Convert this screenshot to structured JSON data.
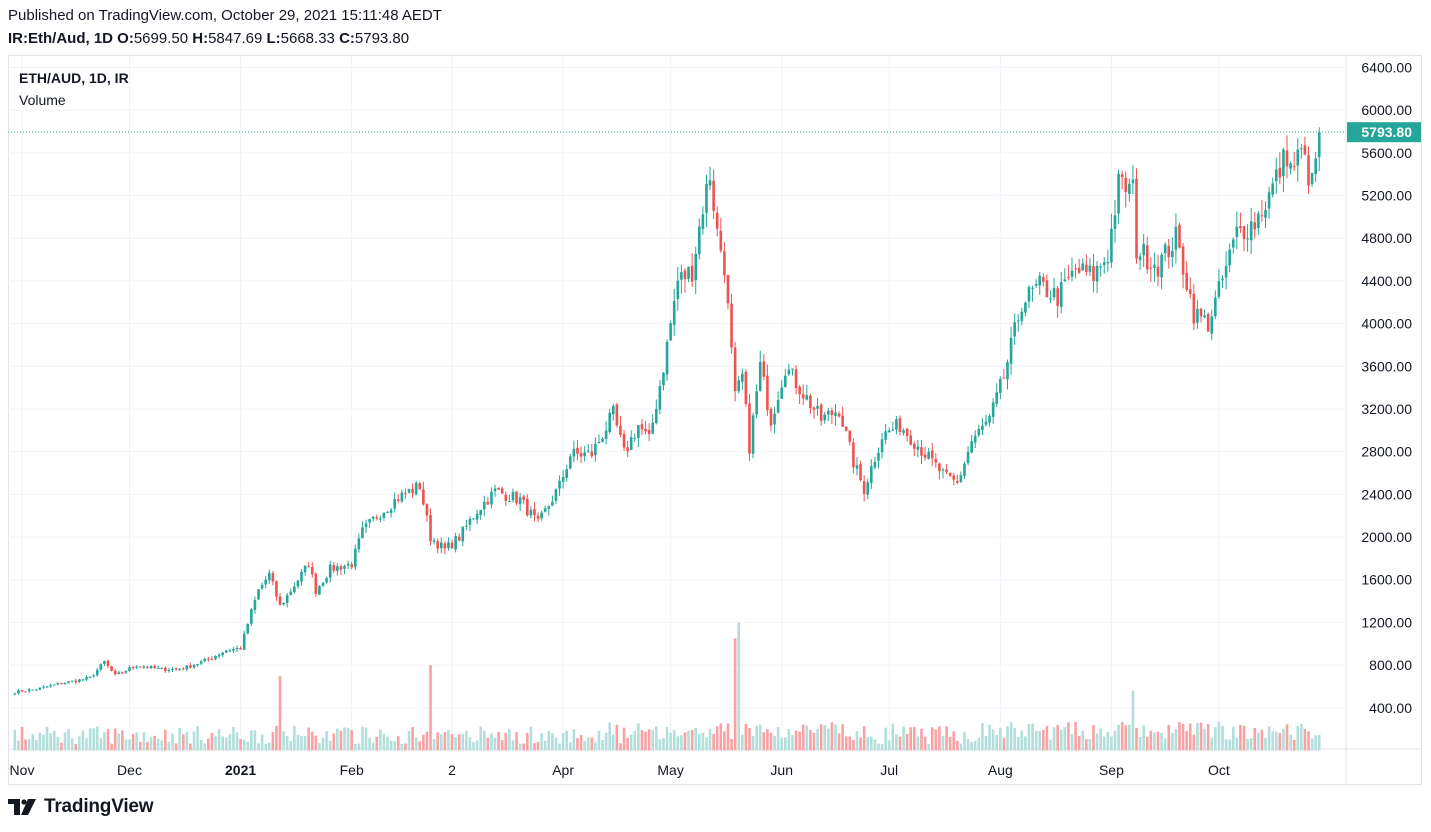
{
  "header": {
    "published": "Published on TradingView.com, October 29, 2021 15:11:48 AEDT",
    "symbol_line": "IR:Eth/Aud, 1D",
    "o_label": "O:",
    "o_value": "5699.50",
    "h_label": "H:",
    "h_value": "5847.69",
    "l_label": "L:",
    "l_value": "5668.33",
    "c_label": "C:",
    "c_value": "5793.80"
  },
  "legend": {
    "symbol": "ETH/AUD, 1D, IR",
    "indicator": "Volume"
  },
  "footer": {
    "brand": "TradingView",
    "logo_icon": "tradingview-logo-icon"
  },
  "colors": {
    "up": "#26a69a",
    "down": "#ef5350",
    "vol_up": "#b2dfdb",
    "vol_down": "#faa1a4",
    "price_line": "#26a69a",
    "grid": "#f0f3fa"
  },
  "chart_data": {
    "type": "candlestick",
    "interval": "1D",
    "y_axis": {
      "position": "right",
      "range": [
        0,
        6500
      ],
      "ticks": [
        "400.00",
        "800.00",
        "1200.00",
        "1600.00",
        "2000.00",
        "2400.00",
        "2800.00",
        "3200.00",
        "3600.00",
        "4000.00",
        "4400.00",
        "4800.00",
        "5200.00",
        "5600.00",
        "6000.00",
        "6400.00"
      ]
    },
    "x_axis": {
      "labels": [
        {
          "text": "Nov",
          "date": "2020-11-01"
        },
        {
          "text": "Dec",
          "date": "2020-12-01"
        },
        {
          "text": "2021",
          "date": "2021-01-01",
          "bold": true
        },
        {
          "text": "Feb",
          "date": "2021-02-01"
        },
        {
          "text": "2",
          "date": "2021-03-01"
        },
        {
          "text": "Apr",
          "date": "2021-04-01"
        },
        {
          "text": "May",
          "date": "2021-05-01"
        },
        {
          "text": "Jun",
          "date": "2021-06-01"
        },
        {
          "text": "Jul",
          "date": "2021-07-01"
        },
        {
          "text": "Aug",
          "date": "2021-08-01"
        },
        {
          "text": "Sep",
          "date": "2021-09-01"
        },
        {
          "text": "Oct",
          "date": "2021-10-01"
        }
      ]
    },
    "last_price": {
      "value": 5793.8,
      "label": "5793.80"
    },
    "close_path": [
      {
        "date": "2020-10-30",
        "close": 548
      },
      {
        "date": "2020-11-05",
        "close": 575
      },
      {
        "date": "2020-11-12",
        "close": 630
      },
      {
        "date": "2020-11-20",
        "close": 680
      },
      {
        "date": "2020-11-24",
        "close": 830
      },
      {
        "date": "2020-11-27",
        "close": 700
      },
      {
        "date": "2020-12-03",
        "close": 800
      },
      {
        "date": "2020-12-10",
        "close": 760
      },
      {
        "date": "2020-12-16",
        "close": 770
      },
      {
        "date": "2020-12-22",
        "close": 840
      },
      {
        "date": "2020-12-28",
        "close": 940
      },
      {
        "date": "2021-01-01",
        "close": 960
      },
      {
        "date": "2021-01-04",
        "close": 1300
      },
      {
        "date": "2021-01-06",
        "close": 1500
      },
      {
        "date": "2021-01-09",
        "close": 1650
      },
      {
        "date": "2021-01-12",
        "close": 1350
      },
      {
        "date": "2021-01-16",
        "close": 1550
      },
      {
        "date": "2021-01-20",
        "close": 1750
      },
      {
        "date": "2021-01-22",
        "close": 1500
      },
      {
        "date": "2021-01-26",
        "close": 1700
      },
      {
        "date": "2021-02-01",
        "close": 1750
      },
      {
        "date": "2021-02-04",
        "close": 2050
      },
      {
        "date": "2021-02-08",
        "close": 2200
      },
      {
        "date": "2021-02-14",
        "close": 2370
      },
      {
        "date": "2021-02-20",
        "close": 2480
      },
      {
        "date": "2021-02-23",
        "close": 2000
      },
      {
        "date": "2021-02-27",
        "close": 1880
      },
      {
        "date": "2021-03-03",
        "close": 2000
      },
      {
        "date": "2021-03-08",
        "close": 2250
      },
      {
        "date": "2021-03-13",
        "close": 2430
      },
      {
        "date": "2021-03-20",
        "close": 2350
      },
      {
        "date": "2021-03-25",
        "close": 2120
      },
      {
        "date": "2021-03-31",
        "close": 2480
      },
      {
        "date": "2021-04-03",
        "close": 2770
      },
      {
        "date": "2021-04-09",
        "close": 2780
      },
      {
        "date": "2021-04-15",
        "close": 3150
      },
      {
        "date": "2021-04-18",
        "close": 2780
      },
      {
        "date": "2021-04-22",
        "close": 3050
      },
      {
        "date": "2021-04-25",
        "close": 2900
      },
      {
        "date": "2021-04-29",
        "close": 3600
      },
      {
        "date": "2021-05-03",
        "close": 4400
      },
      {
        "date": "2021-05-07",
        "close": 4500
      },
      {
        "date": "2021-05-10",
        "close": 5100
      },
      {
        "date": "2021-05-12",
        "close": 5400
      },
      {
        "date": "2021-05-14",
        "close": 4850
      },
      {
        "date": "2021-05-16",
        "close": 4550
      },
      {
        "date": "2021-05-19",
        "close": 3300
      },
      {
        "date": "2021-05-21",
        "close": 3500
      },
      {
        "date": "2021-05-23",
        "close": 2850
      },
      {
        "date": "2021-05-26",
        "close": 3600
      },
      {
        "date": "2021-05-29",
        "close": 3100
      },
      {
        "date": "2021-06-02",
        "close": 3600
      },
      {
        "date": "2021-06-06",
        "close": 3400
      },
      {
        "date": "2021-06-12",
        "close": 3100
      },
      {
        "date": "2021-06-17",
        "close": 3200
      },
      {
        "date": "2021-06-21",
        "close": 2700
      },
      {
        "date": "2021-06-24",
        "close": 2450
      },
      {
        "date": "2021-06-29",
        "close": 2950
      },
      {
        "date": "2021-07-04",
        "close": 3050
      },
      {
        "date": "2021-07-08",
        "close": 2900
      },
      {
        "date": "2021-07-13",
        "close": 2700
      },
      {
        "date": "2021-07-17",
        "close": 2550
      },
      {
        "date": "2021-07-20",
        "close": 2500
      },
      {
        "date": "2021-07-24",
        "close": 2900
      },
      {
        "date": "2021-07-29",
        "close": 3100
      },
      {
        "date": "2021-08-02",
        "close": 3500
      },
      {
        "date": "2021-08-07",
        "close": 4200
      },
      {
        "date": "2021-08-12",
        "close": 4350
      },
      {
        "date": "2021-08-17",
        "close": 4250
      },
      {
        "date": "2021-08-22",
        "close": 4500
      },
      {
        "date": "2021-08-27",
        "close": 4450
      },
      {
        "date": "2021-08-31",
        "close": 4650
      },
      {
        "date": "2021-09-03",
        "close": 5300
      },
      {
        "date": "2021-09-07",
        "close": 5250
      },
      {
        "date": "2021-09-08",
        "close": 4700
      },
      {
        "date": "2021-09-14",
        "close": 4550
      },
      {
        "date": "2021-09-19",
        "close": 4800
      },
      {
        "date": "2021-09-22",
        "close": 4400
      },
      {
        "date": "2021-09-24",
        "close": 4100
      },
      {
        "date": "2021-09-28",
        "close": 4000
      },
      {
        "date": "2021-10-01",
        "close": 4300
      },
      {
        "date": "2021-10-06",
        "close": 4850
      },
      {
        "date": "2021-10-11",
        "close": 4950
      },
      {
        "date": "2021-10-15",
        "close": 5200
      },
      {
        "date": "2021-10-20",
        "close": 5600
      },
      {
        "date": "2021-10-21",
        "close": 5450
      },
      {
        "date": "2021-10-24",
        "close": 5600
      },
      {
        "date": "2021-10-27",
        "close": 5300
      },
      {
        "date": "2021-10-29",
        "close": 5793.8
      }
    ],
    "volume_peaks": [
      {
        "date": "2021-01-12",
        "volume": 700
      },
      {
        "date": "2021-05-20",
        "volume": 1200
      },
      {
        "date": "2021-05-19",
        "volume": 1050
      },
      {
        "date": "2021-02-23",
        "volume": 800
      },
      {
        "date": "2021-09-07",
        "volume": 560
      }
    ]
  }
}
